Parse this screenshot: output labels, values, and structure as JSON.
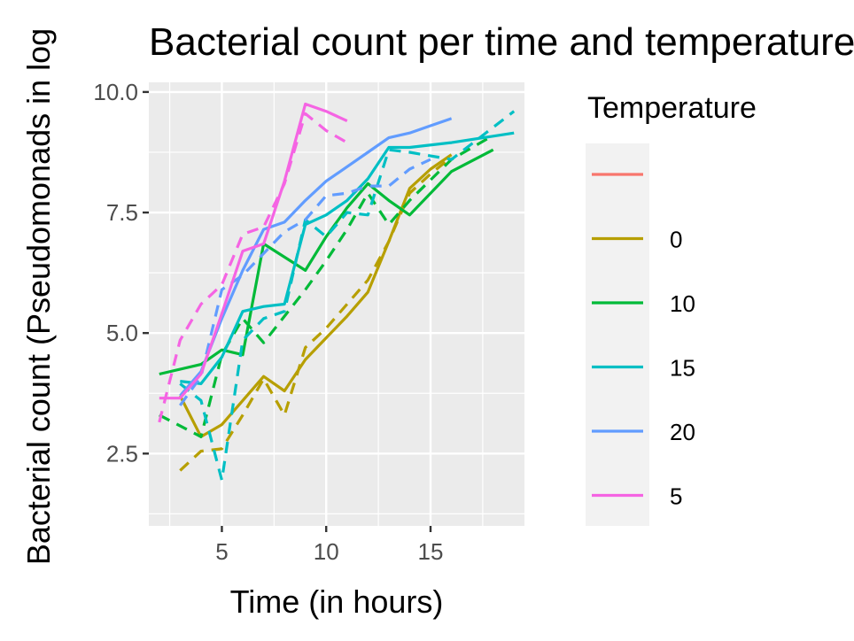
{
  "chart_data": {
    "type": "line",
    "title": "Bacterial count per time and temperature",
    "xlabel": "Time (in hours)",
    "ylabel": "Bacterial count (Pseudomonads in log",
    "xlim": [
      1.5,
      19.5
    ],
    "ylim": [
      1.0,
      10.2
    ],
    "x_ticks": [
      5,
      10,
      15
    ],
    "x_tick_labels": [
      "5",
      "10",
      "15"
    ],
    "y_ticks": [
      2.5,
      5.0,
      7.5,
      10.0
    ],
    "y_tick_labels": [
      "2.5",
      "5.0",
      "7.5",
      "10.0"
    ],
    "grid": true,
    "legend": {
      "title": "Temperature",
      "placement": "right"
    },
    "series": [
      {
        "name": "",
        "color": "#F8766D",
        "linetype": "solid",
        "x": [],
        "y": []
      },
      {
        "name": "0",
        "color": "#B79F00",
        "linetype": "solid",
        "x": [
          3,
          4,
          5,
          6,
          7,
          8,
          9,
          10,
          11,
          12,
          13,
          14,
          15,
          16
        ],
        "y": [
          3.7,
          2.85,
          3.1,
          3.6,
          4.1,
          3.8,
          4.45,
          4.9,
          5.35,
          5.85,
          6.9,
          8.0,
          8.4,
          8.7
        ]
      },
      {
        "name": "0",
        "color": "#B79F00",
        "linetype": "dashed",
        "x": [
          3,
          4,
          5,
          6,
          7,
          8,
          9,
          10,
          11,
          12,
          13,
          14,
          15,
          16
        ],
        "y": [
          2.15,
          2.55,
          2.6,
          3.3,
          4.05,
          3.3,
          4.7,
          5.1,
          5.6,
          6.1,
          6.9,
          7.9,
          8.3,
          8.65
        ]
      },
      {
        "name": "10",
        "color": "#00BA38",
        "linetype": "solid",
        "x": [
          2,
          4,
          5,
          6,
          7,
          9,
          10,
          11,
          12,
          13,
          14,
          16,
          18
        ],
        "y": [
          4.15,
          4.35,
          4.65,
          4.55,
          6.85,
          6.3,
          7.0,
          7.6,
          8.1,
          7.75,
          7.45,
          8.35,
          8.8
        ]
      },
      {
        "name": "10",
        "color": "#00BA38",
        "linetype": "dashed",
        "x": [
          2,
          4,
          5,
          6,
          7,
          9,
          10,
          11,
          12,
          13,
          14,
          16,
          18
        ],
        "y": [
          3.3,
          2.85,
          4.55,
          5.3,
          4.8,
          5.9,
          6.5,
          7.15,
          7.9,
          7.25,
          7.75,
          8.6,
          9.1
        ]
      },
      {
        "name": "15",
        "color": "#00BFC4",
        "linetype": "solid",
        "x": [
          3,
          4,
          5,
          6,
          7,
          8,
          9,
          10,
          11,
          12,
          13,
          14,
          16,
          19
        ],
        "y": [
          4.0,
          3.95,
          4.5,
          5.45,
          5.55,
          5.6,
          7.25,
          7.45,
          7.75,
          8.2,
          8.85,
          8.85,
          8.95,
          9.15
        ]
      },
      {
        "name": "15",
        "color": "#00BFC4",
        "linetype": "dashed",
        "x": [
          3,
          4,
          5,
          6,
          7,
          8,
          9,
          10,
          11,
          12,
          13,
          14,
          16,
          19
        ],
        "y": [
          3.95,
          3.6,
          1.95,
          4.85,
          5.3,
          5.45,
          7.35,
          7.0,
          7.5,
          7.45,
          8.8,
          8.75,
          8.6,
          9.6
        ]
      },
      {
        "name": "20",
        "color": "#619CFF",
        "linetype": "solid",
        "x": [
          3,
          4,
          5,
          6,
          7,
          8,
          9,
          10,
          11,
          12,
          13,
          14,
          15,
          16
        ],
        "y": [
          3.7,
          4.2,
          5.3,
          6.3,
          7.15,
          7.3,
          7.75,
          8.15,
          8.45,
          8.75,
          9.05,
          9.15,
          9.3,
          9.45
        ]
      },
      {
        "name": "20",
        "color": "#619CFF",
        "linetype": "dashed",
        "x": [
          3,
          4,
          5,
          6,
          7,
          8,
          9,
          10,
          11,
          12,
          13,
          14,
          15
        ],
        "y": [
          3.5,
          4.1,
          5.9,
          6.2,
          6.65,
          7.1,
          7.35,
          7.85,
          7.9,
          8.05,
          8.05,
          8.4,
          8.6
        ]
      },
      {
        "name": "5",
        "color": "#F564E3",
        "linetype": "solid",
        "x": [
          2,
          3,
          4,
          5,
          6,
          7,
          8,
          9,
          10,
          11
        ],
        "y": [
          3.65,
          3.65,
          4.15,
          5.4,
          6.7,
          6.85,
          8.15,
          9.75,
          9.6,
          9.4
        ]
      },
      {
        "name": "5",
        "color": "#F564E3",
        "linetype": "dashed",
        "x": [
          2,
          3,
          4,
          5,
          6,
          7,
          8,
          9,
          10,
          11
        ],
        "y": [
          3.15,
          4.85,
          5.6,
          6.0,
          7.05,
          7.2,
          8.1,
          9.55,
          9.2,
          8.95
        ]
      }
    ],
    "legend_entries": [
      {
        "label": "",
        "color": "#F8766D"
      },
      {
        "label": "0",
        "color": "#B79F00"
      },
      {
        "label": "10",
        "color": "#00BA38"
      },
      {
        "label": "15",
        "color": "#00BFC4"
      },
      {
        "label": "20",
        "color": "#619CFF"
      },
      {
        "label": "5",
        "color": "#F564E3"
      }
    ]
  }
}
